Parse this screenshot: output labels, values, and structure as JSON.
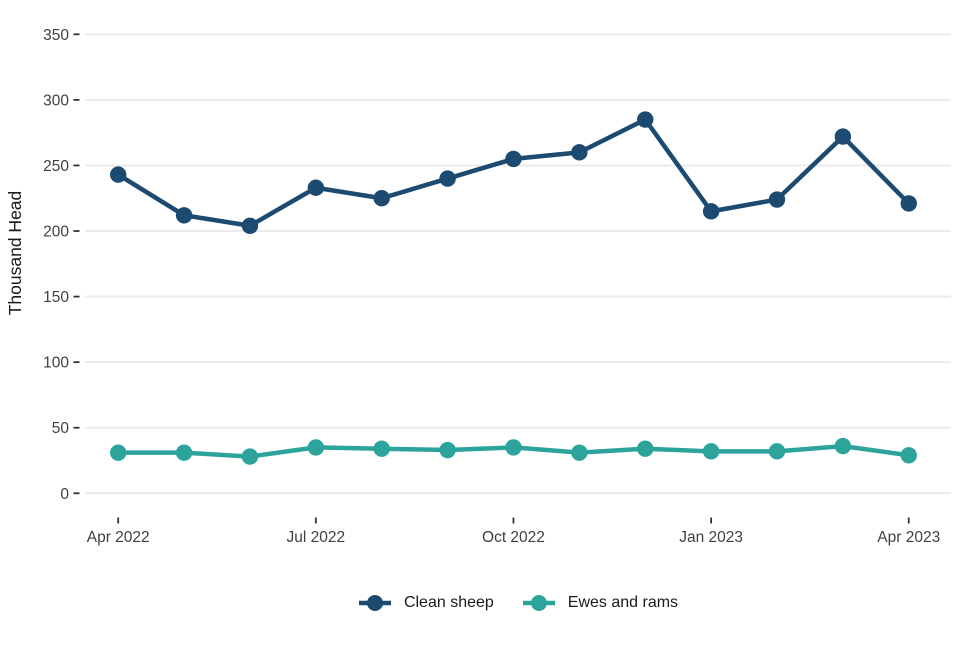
{
  "chart_data": {
    "type": "line",
    "title": "",
    "xlabel": "",
    "ylabel": "Thousand Head",
    "categories": [
      "Apr 2022",
      "May 2022",
      "Jun 2022",
      "Jul 2022",
      "Aug 2022",
      "Sep 2022",
      "Oct 2022",
      "Nov 2022",
      "Dec 2022",
      "Jan 2023",
      "Feb 2023",
      "Mar 2023",
      "Apr 2023"
    ],
    "x_tick_labels": [
      {
        "index": 0,
        "label": "Apr 2022"
      },
      {
        "index": 3,
        "label": "Jul 2022"
      },
      {
        "index": 6,
        "label": "Oct 2022"
      },
      {
        "index": 9,
        "label": "Jan 2023"
      },
      {
        "index": 12,
        "label": "Apr 2023"
      }
    ],
    "y_ticks": [
      0,
      50,
      100,
      150,
      200,
      250,
      300,
      350
    ],
    "ylim": [
      0,
      350
    ],
    "grid": "horizontal-major-only",
    "legend_position": "bottom-center",
    "series": [
      {
        "name": "Clean sheep",
        "color": "#1C4A70",
        "values": [
          243,
          212,
          204,
          233,
          225,
          240,
          255,
          260,
          285,
          215,
          224,
          272,
          221
        ]
      },
      {
        "name": "Ewes and rams",
        "color": "#2CA49C",
        "values": [
          31,
          31,
          28,
          35,
          34,
          33,
          35,
          31,
          34,
          32,
          32,
          36,
          29
        ]
      }
    ],
    "colors": {
      "background": "#FFFFFF",
      "gridline": "#EBEBEB",
      "tick": "#333333",
      "tick_label": "#404040",
      "axis_title": "#1A1A1A",
      "legend_text": "#1A1A1A"
    }
  }
}
